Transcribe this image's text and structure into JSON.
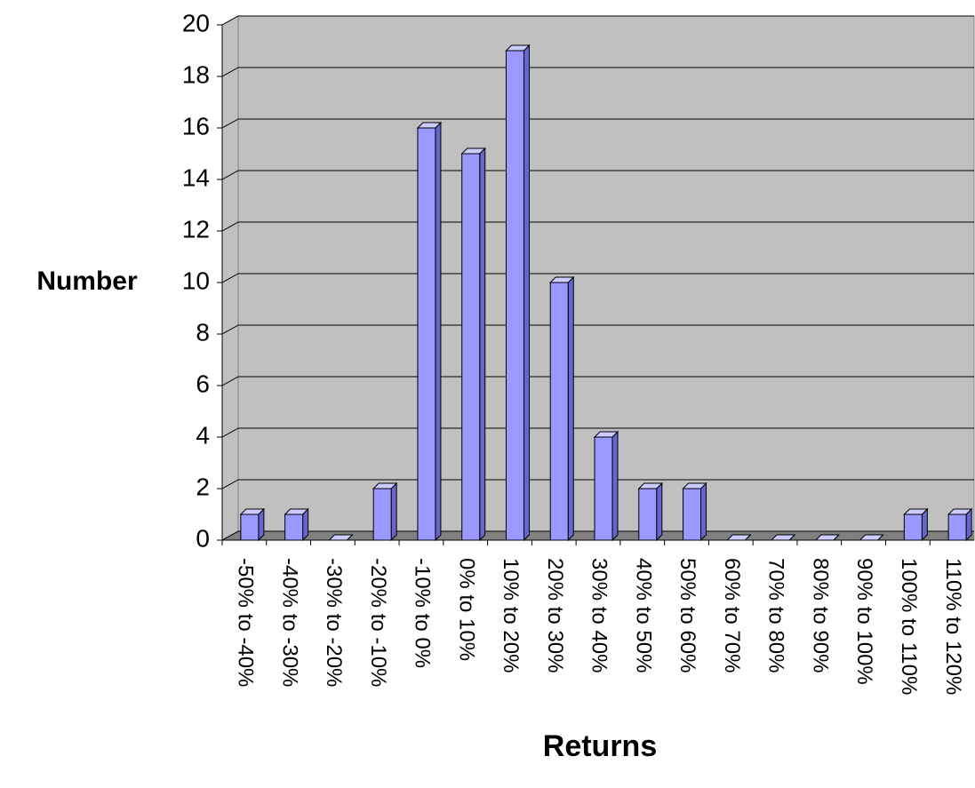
{
  "chart_data": {
    "type": "bar",
    "xlabel": "Returns",
    "ylabel": "Number",
    "categories": [
      "-50% to -40%",
      "-40% to -30%",
      "-30% to -20%",
      "-20% to -10%",
      "-10% to 0%",
      "0% to 10%",
      "10% to 20%",
      "20% to 30%",
      "30% to 40%",
      "40% to 50%",
      "50% to 60%",
      "60% to 70%",
      "70% to 80%",
      "80% to 90%",
      "90% to 100%",
      "100% to 110%",
      "110% to 120%"
    ],
    "values": [
      1,
      1,
      0,
      2,
      16,
      15,
      19,
      10,
      4,
      2,
      2,
      0,
      0,
      0,
      0,
      1,
      1
    ],
    "color": "#9999ff",
    "ylim": [
      0,
      20
    ],
    "yticks": [
      0,
      2,
      4,
      6,
      8,
      10,
      12,
      14,
      16,
      18,
      20
    ],
    "grid": true
  }
}
